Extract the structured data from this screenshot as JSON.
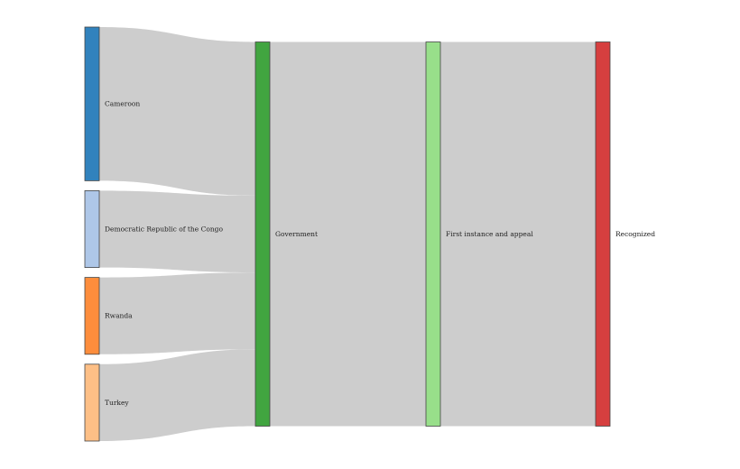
{
  "chart_data": {
    "type": "sankey",
    "title": "",
    "columns": [
      {
        "nodes": [
          "Cameroon",
          "Democratic Republic of the Congo",
          "Rwanda",
          "Turkey"
        ]
      },
      {
        "nodes": [
          "Government"
        ]
      },
      {
        "nodes": [
          "First instance and appeal"
        ]
      },
      {
        "nodes": [
          "Recognized"
        ]
      }
    ],
    "node_colors": {
      "Cameroon": "#3182bd",
      "Democratic Republic of the Congo": "#aec7e8",
      "Rwanda": "#fd8d3c",
      "Turkey": "#fdbf86",
      "Government": "#41a540",
      "First instance and appeal": "#98df8a",
      "Recognized": "#d63f3f"
    },
    "links": [
      {
        "source": "Cameroon",
        "target": "Government",
        "value": 2
      },
      {
        "source": "Democratic Republic of the Congo",
        "target": "Government",
        "value": 1
      },
      {
        "source": "Rwanda",
        "target": "Government",
        "value": 1
      },
      {
        "source": "Turkey",
        "target": "Government",
        "value": 1
      },
      {
        "source": "Government",
        "target": "First instance and appeal",
        "value": 5
      },
      {
        "source": "First instance and appeal",
        "target": "Recognized",
        "value": 5
      }
    ],
    "link_color": "#cdcdcd"
  }
}
